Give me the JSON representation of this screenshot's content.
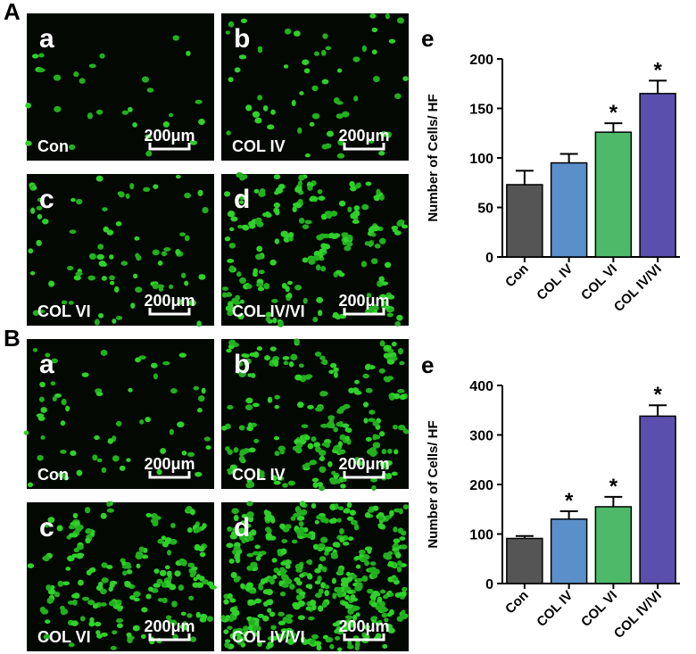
{
  "panels": [
    {
      "label": "A",
      "images": [
        {
          "letter": "a",
          "label": "Con",
          "scale": "200μm"
        },
        {
          "letter": "b",
          "label": "COL IV",
          "scale": "200μm"
        },
        {
          "letter": "c",
          "label": "COL VI",
          "scale": "200μm"
        },
        {
          "letter": "d",
          "label": "COL IV/VI",
          "scale": "200μm"
        }
      ]
    },
    {
      "label": "B",
      "images": [
        {
          "letter": "a",
          "label": "Con",
          "scale": "200μm"
        },
        {
          "letter": "b",
          "label": "COL IV",
          "scale": "200μm"
        },
        {
          "letter": "c",
          "label": "COL VI",
          "scale": "200μm"
        },
        {
          "letter": "d",
          "label": "COL IV/VI",
          "scale": "200μm"
        }
      ]
    }
  ],
  "chart_data": [
    {
      "type": "bar",
      "panel_label": "e",
      "ylabel": "Number of Cells/ HF",
      "categories": [
        "Con",
        "COL IV",
        "COL VI",
        "COL IV/VI"
      ],
      "values": [
        73,
        95,
        126,
        165
      ],
      "errors": [
        14,
        9,
        9,
        13
      ],
      "colors": [
        "#555555",
        "#5b8fc9",
        "#4fb96a",
        "#5a4fad"
      ],
      "significance": [
        null,
        null,
        "*",
        "*"
      ],
      "ylim": [
        0,
        200
      ],
      "yticks": [
        0,
        50,
        100,
        150,
        200
      ]
    },
    {
      "type": "bar",
      "panel_label": "e",
      "ylabel": "Number of Cells/ HF",
      "categories": [
        "Con",
        "COL IV",
        "COL VI",
        "COL IV/VI"
      ],
      "values": [
        91,
        130,
        155,
        338
      ],
      "errors": [
        5,
        16,
        20,
        22
      ],
      "colors": [
        "#555555",
        "#5b8fc9",
        "#4fb96a",
        "#5a4fad"
      ],
      "significance": [
        null,
        "*",
        "*",
        "*"
      ],
      "ylim": [
        0,
        400
      ],
      "yticks": [
        0,
        100,
        200,
        300,
        400
      ]
    }
  ]
}
